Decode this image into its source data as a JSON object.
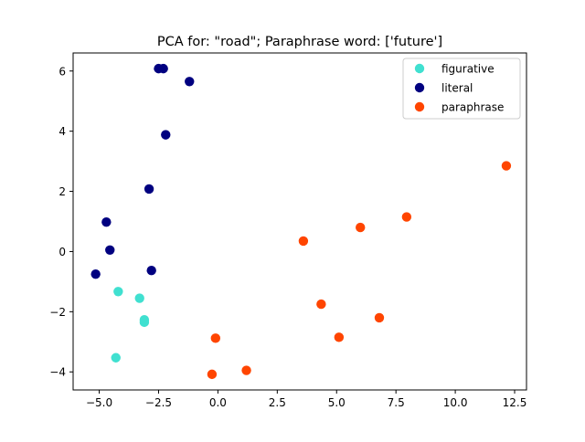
{
  "chart_data": {
    "type": "scatter",
    "title": "PCA for: \"road\"; Paraphrase word: ['future']",
    "xlabel": "",
    "ylabel": "",
    "xlim": [
      -6.1,
      13.0
    ],
    "ylim": [
      -4.6,
      6.6
    ],
    "xticks": [
      -5.0,
      -2.5,
      0.0,
      2.5,
      5.0,
      7.5,
      10.0,
      12.5
    ],
    "xtick_labels": [
      "−5.0",
      "−2.5",
      "0.0",
      "2.5",
      "5.0",
      "7.5",
      "10.0",
      "12.5"
    ],
    "yticks": [
      -4,
      -2,
      0,
      2,
      4,
      6
    ],
    "ytick_labels": [
      "−4",
      "−2",
      "0",
      "2",
      "4",
      "6"
    ],
    "grid": false,
    "legend_position": "top-right",
    "series": [
      {
        "name": "figurative",
        "color": "#40e0d0",
        "points": [
          {
            "x": -4.2,
            "y": -1.33
          },
          {
            "x": -3.3,
            "y": -1.55
          },
          {
            "x": -3.1,
            "y": -2.27
          },
          {
            "x": -3.1,
            "y": -2.35
          },
          {
            "x": -4.3,
            "y": -3.53
          }
        ]
      },
      {
        "name": "literal",
        "color": "#000080",
        "points": [
          {
            "x": -2.5,
            "y": 6.08
          },
          {
            "x": -2.3,
            "y": 6.08
          },
          {
            "x": -1.2,
            "y": 5.65
          },
          {
            "x": -2.2,
            "y": 3.88
          },
          {
            "x": -2.9,
            "y": 2.08
          },
          {
            "x": -4.7,
            "y": 0.98
          },
          {
            "x": -4.55,
            "y": 0.05
          },
          {
            "x": -5.15,
            "y": -0.75
          },
          {
            "x": -2.8,
            "y": -0.63
          }
        ]
      },
      {
        "name": "paraphrase",
        "color": "#ff4500",
        "points": [
          {
            "x": 12.15,
            "y": 2.85
          },
          {
            "x": 7.95,
            "y": 1.15
          },
          {
            "x": 6.0,
            "y": 0.8
          },
          {
            "x": 3.6,
            "y": 0.35
          },
          {
            "x": 4.35,
            "y": -1.75
          },
          {
            "x": 6.8,
            "y": -2.2
          },
          {
            "x": 5.1,
            "y": -2.85
          },
          {
            "x": -0.1,
            "y": -2.88
          },
          {
            "x": 1.2,
            "y": -3.95
          },
          {
            "x": -0.25,
            "y": -4.08
          }
        ]
      }
    ]
  }
}
